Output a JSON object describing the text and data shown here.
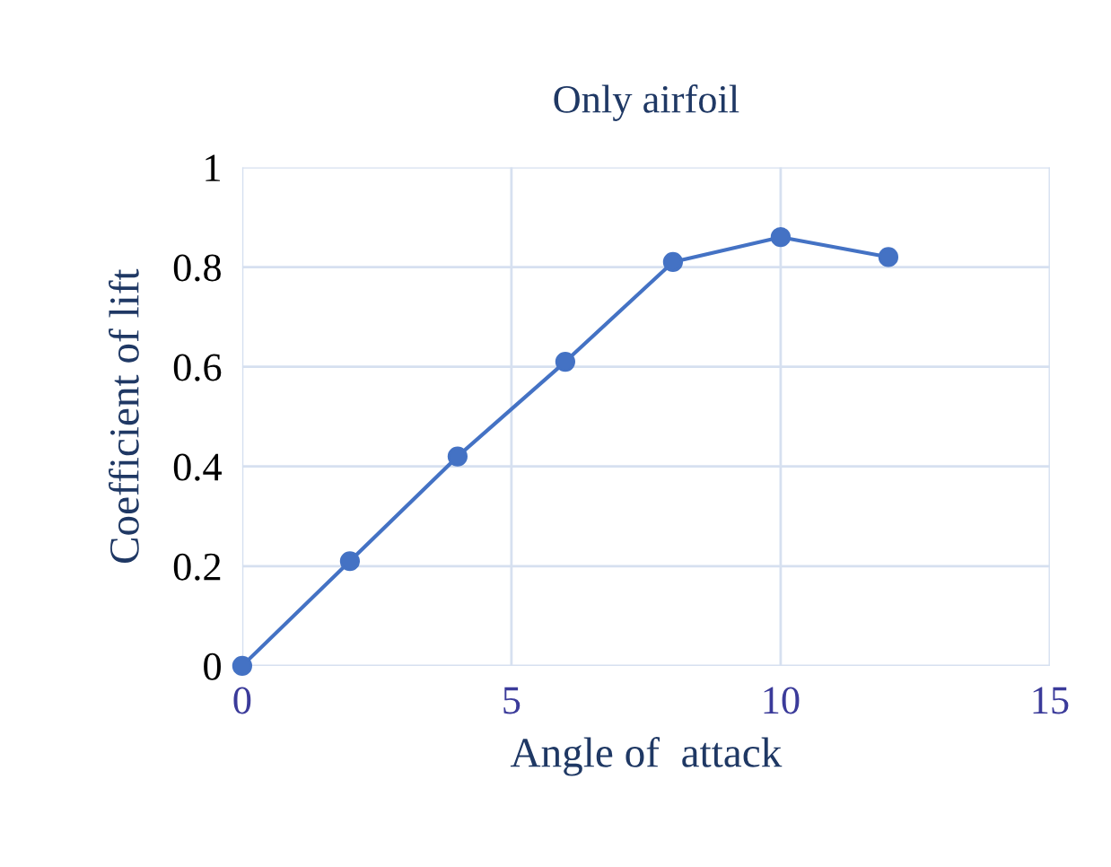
{
  "chart_data": {
    "type": "line",
    "title": "Only airfoil",
    "xlabel": "Angle of  attack",
    "ylabel": "Coefficient of lift",
    "x": [
      0,
      2,
      4,
      6,
      8,
      10,
      12
    ],
    "series": [
      {
        "color": "#4472c4",
        "values": [
          0,
          0.21,
          0.42,
          0.61,
          0.81,
          0.86,
          0.82
        ]
      }
    ],
    "xlim": [
      0,
      15
    ],
    "xticks": [
      0,
      5,
      10,
      15
    ],
    "ylim": [
      0,
      1
    ],
    "yticks": [
      0,
      0.2,
      0.4,
      0.6,
      0.8,
      1
    ],
    "grid": true,
    "marker": "circle",
    "line_style": "solid"
  }
}
